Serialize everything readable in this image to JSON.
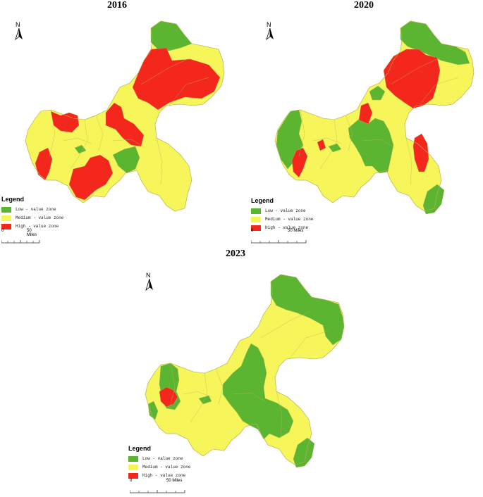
{
  "colors": {
    "low": "#5bb531",
    "medium": "#f6f55a",
    "high": "#f4271c",
    "border": "#b8b860"
  },
  "legend": {
    "title": "Legend",
    "items": [
      {
        "key": "low",
        "label": "Low - value zone"
      },
      {
        "key": "medium",
        "label": "Medium - value zone"
      },
      {
        "key": "high",
        "label": "High - value zone"
      }
    ]
  },
  "north_label": "N",
  "scale": {
    "start": "0",
    "end": "50 Miles"
  },
  "maps": [
    {
      "year": "2016"
    },
    {
      "year": "2020"
    },
    {
      "year": "2023"
    }
  ]
}
